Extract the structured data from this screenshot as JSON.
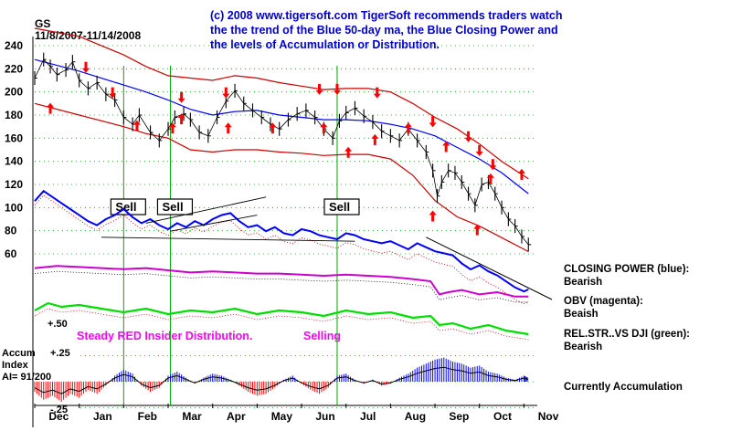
{
  "header": {
    "ticker": "GS",
    "date_range": "11/8/2007-11/14/2008",
    "commentary": [
      "(c) 2008 www.tigersoft.com    TigerSoft recommends traders watch",
      "the the trend of the Blue 50-day ma, the Blue Closing Power and",
      "the levels of Accumulation or Distribution."
    ]
  },
  "colors": {
    "price": "#000000",
    "ma50": "#0000ff",
    "bands": "#cc0000",
    "arrows": "#ff0000",
    "closing_power": "#0000ff",
    "obv": "#cc00cc",
    "relstr": "#00dd00",
    "signal_lines": "#00aa00",
    "pink_text": "#ff00ff",
    "accum_pos": "#0000ff",
    "accum_neg": "#ff0000"
  },
  "chart_data": {
    "type": "line",
    "y_ticks": [
      240,
      220,
      200,
      180,
      160,
      140,
      120,
      100,
      80,
      60
    ],
    "ylim": [
      60,
      240
    ],
    "months": [
      "Dec",
      "Jan",
      "Feb",
      "Mar",
      "Apr",
      "May",
      "Jun",
      "Jul",
      "Aug",
      "Sep",
      "Oct",
      "Nov"
    ],
    "price_close": [
      [
        0,
        212
      ],
      [
        0.2,
        228
      ],
      [
        0.35,
        222
      ],
      [
        0.5,
        215
      ],
      [
        0.7,
        219
      ],
      [
        0.85,
        226
      ],
      [
        1.0,
        210
      ],
      [
        1.2,
        203
      ],
      [
        1.4,
        208
      ],
      [
        1.6,
        198
      ],
      [
        1.8,
        193
      ],
      [
        2.0,
        178
      ],
      [
        2.2,
        172
      ],
      [
        2.35,
        180
      ],
      [
        2.6,
        165
      ],
      [
        2.8,
        158
      ],
      [
        3.0,
        168
      ],
      [
        3.15,
        178
      ],
      [
        3.35,
        181
      ],
      [
        3.5,
        176
      ],
      [
        3.7,
        165
      ],
      [
        3.9,
        162
      ],
      [
        4.1,
        178
      ],
      [
        4.3,
        192
      ],
      [
        4.5,
        201
      ],
      [
        4.7,
        190
      ],
      [
        4.9,
        184
      ],
      [
        5.1,
        178
      ],
      [
        5.3,
        172
      ],
      [
        5.5,
        168
      ],
      [
        5.7,
        176
      ],
      [
        5.9,
        181
      ],
      [
        6.1,
        184
      ],
      [
        6.3,
        178
      ],
      [
        6.5,
        168
      ],
      [
        6.7,
        160
      ],
      [
        6.85,
        175
      ],
      [
        7.0,
        182
      ],
      [
        7.2,
        186
      ],
      [
        7.4,
        179
      ],
      [
        7.6,
        174
      ],
      [
        7.8,
        166
      ],
      [
        8.0,
        162
      ],
      [
        8.2,
        158
      ],
      [
        8.4,
        168
      ],
      [
        8.6,
        158
      ],
      [
        8.8,
        148
      ],
      [
        8.95,
        132
      ],
      [
        9.05,
        110
      ],
      [
        9.15,
        122
      ],
      [
        9.3,
        132
      ],
      [
        9.45,
        130
      ],
      [
        9.6,
        122
      ],
      [
        9.75,
        112
      ],
      [
        9.9,
        102
      ],
      [
        10.05,
        120
      ],
      [
        10.2,
        122
      ],
      [
        10.35,
        112
      ],
      [
        10.5,
        100
      ],
      [
        10.65,
        90
      ],
      [
        10.8,
        84
      ],
      [
        10.95,
        75
      ],
      [
        11.1,
        68
      ]
    ],
    "ma50": [
      [
        0,
        228
      ],
      [
        1.0,
        218
      ],
      [
        2.0,
        206
      ],
      [
        2.5,
        200
      ],
      [
        3.0,
        193
      ],
      [
        3.5,
        185
      ],
      [
        4.0,
        180
      ],
      [
        4.5,
        183
      ],
      [
        5.0,
        184
      ],
      [
        5.5,
        180
      ],
      [
        6.0,
        178
      ],
      [
        6.5,
        176
      ],
      [
        7.0,
        176
      ],
      [
        7.5,
        175
      ],
      [
        8.0,
        172
      ],
      [
        8.5,
        168
      ],
      [
        9.0,
        162
      ],
      [
        9.5,
        152
      ],
      [
        10.0,
        142
      ],
      [
        10.5,
        130
      ],
      [
        11.1,
        112
      ]
    ],
    "upper_band": [
      [
        0,
        255
      ],
      [
        1.0,
        248
      ],
      [
        2.0,
        232
      ],
      [
        2.5,
        222
      ],
      [
        3.0,
        214
      ],
      [
        3.5,
        212
      ],
      [
        4.0,
        210
      ],
      [
        4.5,
        214
      ],
      [
        5.0,
        212
      ],
      [
        5.5,
        208
      ],
      [
        6.0,
        205
      ],
      [
        6.5,
        202
      ],
      [
        7.0,
        203
      ],
      [
        7.5,
        203
      ],
      [
        8.0,
        200
      ],
      [
        8.5,
        190
      ],
      [
        9.0,
        178
      ],
      [
        9.5,
        168
      ],
      [
        10.0,
        155
      ],
      [
        10.5,
        140
      ],
      [
        11.1,
        125
      ]
    ],
    "lower_band": [
      [
        0,
        190
      ],
      [
        1.0,
        180
      ],
      [
        2.0,
        170
      ],
      [
        2.5,
        164
      ],
      [
        3.0,
        160
      ],
      [
        3.5,
        150
      ],
      [
        4.0,
        148
      ],
      [
        4.5,
        150
      ],
      [
        5.0,
        150
      ],
      [
        5.5,
        148
      ],
      [
        6.0,
        147
      ],
      [
        6.5,
        145
      ],
      [
        7.0,
        146
      ],
      [
        7.5,
        146
      ],
      [
        8.0,
        142
      ],
      [
        8.5,
        128
      ],
      [
        9.0,
        106
      ],
      [
        9.5,
        92
      ],
      [
        10.0,
        84
      ],
      [
        10.5,
        74
      ],
      [
        11.1,
        62
      ]
    ],
    "up_arrows": [
      [
        0.35,
        185
      ],
      [
        2.3,
        170
      ],
      [
        3.1,
        168
      ],
      [
        3.3,
        176
      ],
      [
        4.35,
        168
      ],
      [
        5.35,
        168
      ],
      [
        6.5,
        168
      ],
      [
        7.05,
        147
      ],
      [
        7.65,
        158
      ],
      [
        8.4,
        168
      ],
      [
        9.25,
        152
      ],
      [
        10.25,
        124
      ],
      [
        10.95,
        128
      ],
      [
        8.95,
        92
      ],
      [
        9.95,
        80
      ]
    ],
    "down_arrows": [
      [
        1.15,
        222
      ],
      [
        1.75,
        200
      ],
      [
        3.3,
        196
      ],
      [
        4.3,
        200
      ],
      [
        6.4,
        203
      ],
      [
        6.8,
        203
      ],
      [
        7.7,
        200
      ],
      [
        8.95,
        175
      ],
      [
        10.0,
        150
      ],
      [
        10.3,
        138
      ],
      [
        9.75,
        162
      ]
    ],
    "sell_signals": [
      {
        "label": "Sell",
        "x": 2.0
      },
      {
        "label": "Sell",
        "x": 3.05
      },
      {
        "label": "Sell",
        "x": 6.8
      }
    ],
    "closing_power": [
      [
        0,
        38
      ],
      [
        0.2,
        48
      ],
      [
        0.4,
        42
      ],
      [
        0.6,
        36
      ],
      [
        0.8,
        30
      ],
      [
        1.0,
        24
      ],
      [
        1.2,
        18
      ],
      [
        1.4,
        14
      ],
      [
        1.6,
        20
      ],
      [
        1.8,
        24
      ],
      [
        2.0,
        30
      ],
      [
        2.2,
        22
      ],
      [
        2.4,
        16
      ],
      [
        2.6,
        20
      ],
      [
        2.8,
        14
      ],
      [
        3.0,
        10
      ],
      [
        3.2,
        16
      ],
      [
        3.4,
        12
      ],
      [
        3.6,
        18
      ],
      [
        3.8,
        14
      ],
      [
        4.0,
        20
      ],
      [
        4.2,
        24
      ],
      [
        4.4,
        26
      ],
      [
        4.6,
        18
      ],
      [
        4.8,
        12
      ],
      [
        5.0,
        14
      ],
      [
        5.2,
        8
      ],
      [
        5.4,
        12
      ],
      [
        5.6,
        6
      ],
      [
        5.8,
        4
      ],
      [
        6.0,
        10
      ],
      [
        6.2,
        8
      ],
      [
        6.4,
        4
      ],
      [
        6.6,
        2
      ],
      [
        6.8,
        0
      ],
      [
        7.0,
        6
      ],
      [
        7.2,
        4
      ],
      [
        7.4,
        0
      ],
      [
        7.6,
        -2
      ],
      [
        7.8,
        -4
      ],
      [
        8.0,
        -2
      ],
      [
        8.2,
        -6
      ],
      [
        8.4,
        -10
      ],
      [
        8.6,
        -4
      ],
      [
        8.8,
        -8
      ],
      [
        9.0,
        -12
      ],
      [
        9.2,
        -14
      ],
      [
        9.4,
        -16
      ],
      [
        9.6,
        -24
      ],
      [
        9.8,
        -30
      ],
      [
        10.0,
        -26
      ],
      [
        10.2,
        -32
      ],
      [
        10.4,
        -36
      ],
      [
        10.6,
        -42
      ],
      [
        10.8,
        -48
      ],
      [
        11.0,
        -52
      ],
      [
        11.1,
        -50
      ]
    ],
    "obv": [
      [
        0,
        2
      ],
      [
        0.5,
        4
      ],
      [
        1.0,
        3
      ],
      [
        1.5,
        2
      ],
      [
        2.0,
        1
      ],
      [
        2.5,
        2
      ],
      [
        3.0,
        0
      ],
      [
        3.5,
        -2
      ],
      [
        4.0,
        -1
      ],
      [
        4.5,
        -2
      ],
      [
        5.0,
        -3
      ],
      [
        5.5,
        -3
      ],
      [
        6.0,
        -4
      ],
      [
        6.5,
        -5
      ],
      [
        7.0,
        -4
      ],
      [
        7.5,
        -5
      ],
      [
        8.0,
        -6
      ],
      [
        8.5,
        -8
      ],
      [
        8.9,
        -10
      ],
      [
        9.1,
        -22
      ],
      [
        9.3,
        -20
      ],
      [
        9.6,
        -18
      ],
      [
        10.0,
        -22
      ],
      [
        10.4,
        -20
      ],
      [
        10.8,
        -24
      ],
      [
        11.1,
        -24
      ]
    ],
    "relstr": [
      [
        0,
        0
      ],
      [
        0.3,
        8
      ],
      [
        0.6,
        4
      ],
      [
        1.0,
        6
      ],
      [
        1.5,
        2
      ],
      [
        2.0,
        -2
      ],
      [
        2.5,
        2
      ],
      [
        3.0,
        -4
      ],
      [
        3.5,
        0
      ],
      [
        4.0,
        -2
      ],
      [
        4.5,
        2
      ],
      [
        5.0,
        -4
      ],
      [
        5.5,
        0
      ],
      [
        6.0,
        -2
      ],
      [
        6.5,
        -6
      ],
      [
        7.0,
        0
      ],
      [
        7.5,
        -4
      ],
      [
        8.0,
        -2
      ],
      [
        8.5,
        -8
      ],
      [
        8.9,
        -6
      ],
      [
        9.1,
        -16
      ],
      [
        9.4,
        -14
      ],
      [
        9.8,
        -20
      ],
      [
        10.2,
        -16
      ],
      [
        10.6,
        -22
      ],
      [
        11.1,
        -26
      ]
    ],
    "accum": [
      [
        0,
        -10
      ],
      [
        0.2,
        -18
      ],
      [
        0.4,
        -14
      ],
      [
        0.6,
        -20
      ],
      [
        0.8,
        -12
      ],
      [
        1.0,
        -16
      ],
      [
        1.2,
        -8
      ],
      [
        1.4,
        -12
      ],
      [
        1.6,
        -4
      ],
      [
        1.8,
        6
      ],
      [
        2.0,
        12
      ],
      [
        2.2,
        8
      ],
      [
        2.4,
        -4
      ],
      [
        2.6,
        -10
      ],
      [
        2.8,
        -6
      ],
      [
        3.0,
        6
      ],
      [
        3.2,
        10
      ],
      [
        3.4,
        4
      ],
      [
        3.6,
        -2
      ],
      [
        3.8,
        4
      ],
      [
        4.0,
        8
      ],
      [
        4.2,
        6
      ],
      [
        4.4,
        2
      ],
      [
        4.6,
        -4
      ],
      [
        4.8,
        -10
      ],
      [
        5.0,
        -14
      ],
      [
        5.2,
        -12
      ],
      [
        5.4,
        -6
      ],
      [
        5.6,
        2
      ],
      [
        5.8,
        6
      ],
      [
        6.0,
        -2
      ],
      [
        6.2,
        -8
      ],
      [
        6.4,
        -12
      ],
      [
        6.6,
        -6
      ],
      [
        6.8,
        6
      ],
      [
        7.0,
        8
      ],
      [
        7.2,
        2
      ],
      [
        7.4,
        -2
      ],
      [
        7.6,
        2
      ],
      [
        7.8,
        -4
      ],
      [
        8.0,
        -2
      ],
      [
        8.2,
        4
      ],
      [
        8.4,
        8
      ],
      [
        8.6,
        14
      ],
      [
        8.8,
        18
      ],
      [
        9.0,
        22
      ],
      [
        9.2,
        24
      ],
      [
        9.4,
        20
      ],
      [
        9.6,
        18
      ],
      [
        9.8,
        14
      ],
      [
        10.0,
        16
      ],
      [
        10.2,
        10
      ],
      [
        10.4,
        8
      ],
      [
        10.6,
        4
      ],
      [
        10.8,
        2
      ],
      [
        11.0,
        6
      ],
      [
        11.1,
        4
      ]
    ]
  },
  "indicator_labels": {
    "closing_power": {
      "title": "CLOSING POWER (blue):",
      "status": "Bearish"
    },
    "obv": {
      "title": "OBV (magenta):",
      "status": "Beaish"
    },
    "relstr": {
      "title": "REL.STR..VS DJI (green):",
      "status": "Bearish"
    },
    "accum_status": "Currently Accumulation"
  },
  "annotations": {
    "level_50": "+.50",
    "insider": "Steady RED Insider Distribution.",
    "selling": "Selling"
  },
  "accum_panel": {
    "title_line1": "Accum",
    "title_line2": "Index",
    "ai_value": "AI= 91/200",
    "top_level": "+.25",
    "bottom_level": "-.25"
  }
}
